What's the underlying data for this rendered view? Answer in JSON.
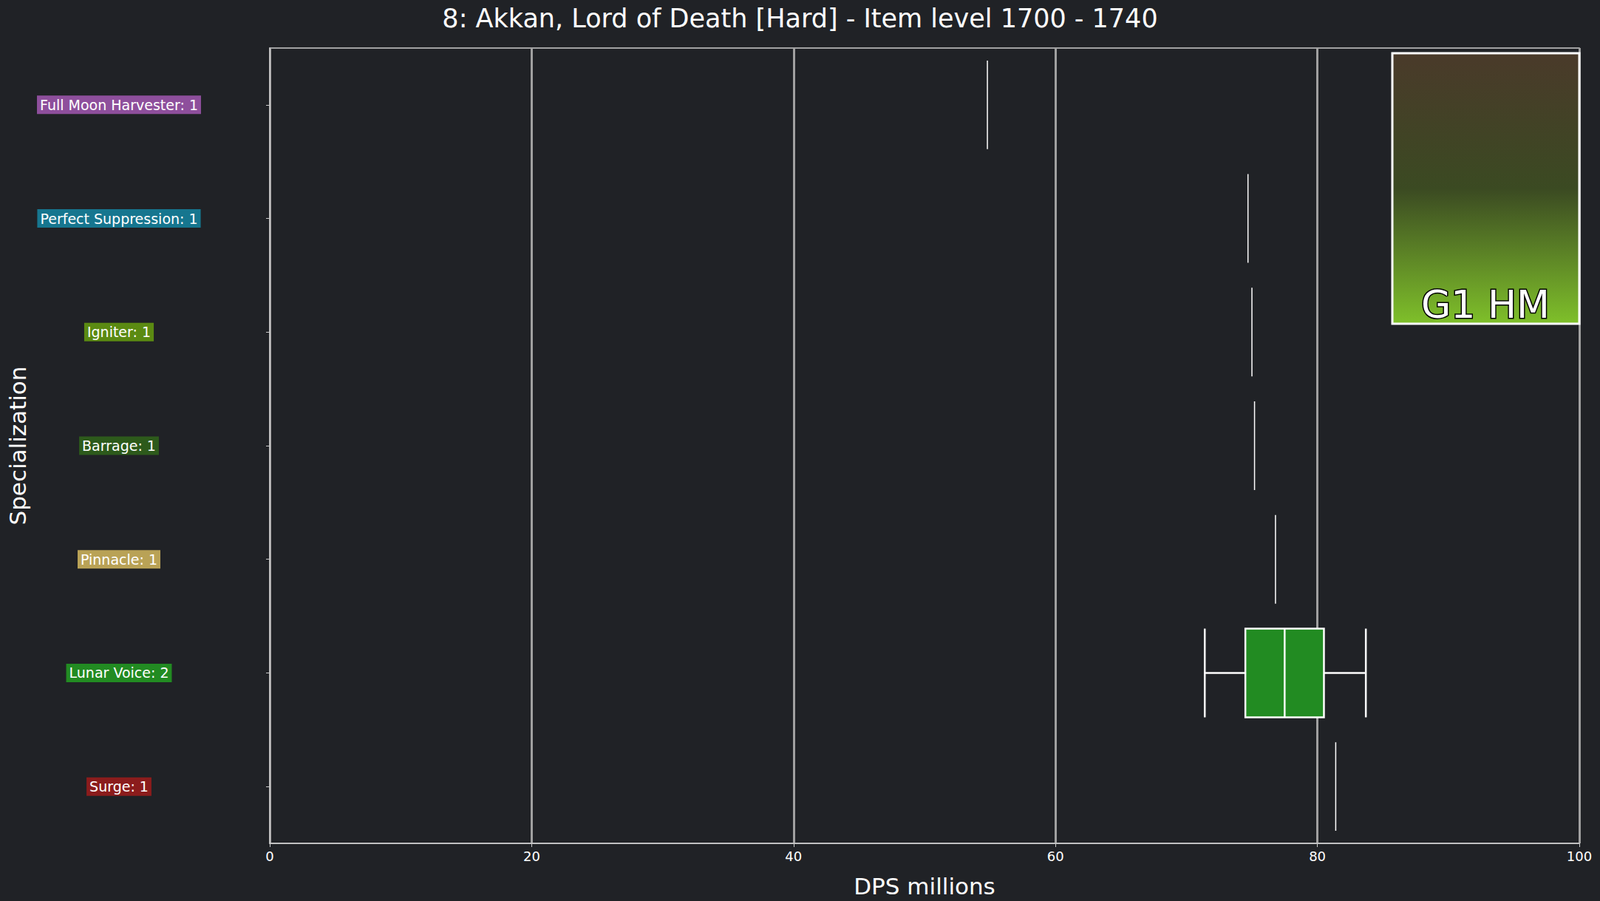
{
  "chart_data": {
    "type": "boxplot",
    "title": "8: Akkan, Lord of Death [Hard] - Item level 1700 - 1740",
    "x_label": "DPS millions",
    "y_label": "Specialization",
    "orientation": "horizontal",
    "categories": [
      "Full Moon Harvester: 1",
      "Perfect Suppression: 1",
      "Igniter: 1",
      "Barrage: 1",
      "Pinnacle: 1",
      "Lunar Voice: 2",
      "Surge: 1"
    ],
    "boxes": [
      [
        54.8,
        54.8,
        54.8,
        54.8,
        54.8
      ],
      [
        74.7,
        74.7,
        74.7,
        74.7,
        74.7
      ],
      [
        75.0,
        75.0,
        75.0,
        75.0,
        75.0
      ],
      [
        75.2,
        75.2,
        75.2,
        75.2,
        75.2
      ],
      [
        76.8,
        76.8,
        76.8,
        76.8,
        76.8
      ],
      [
        71.4,
        74.5,
        77.5,
        80.5,
        83.7
      ],
      [
        81.4,
        81.4,
        81.4,
        81.4,
        81.4
      ]
    ],
    "colors": [
      "#8e4f9c",
      "#16768f",
      "#5b8a12",
      "#2d5a1b",
      "#b9a256",
      "#228b22",
      "#8b1c1c"
    ],
    "xlim": [
      0,
      100
    ],
    "xticks": [
      0,
      20,
      40,
      60,
      80,
      100
    ],
    "grid": true,
    "annotations": [
      "G1 HM"
    ]
  }
}
